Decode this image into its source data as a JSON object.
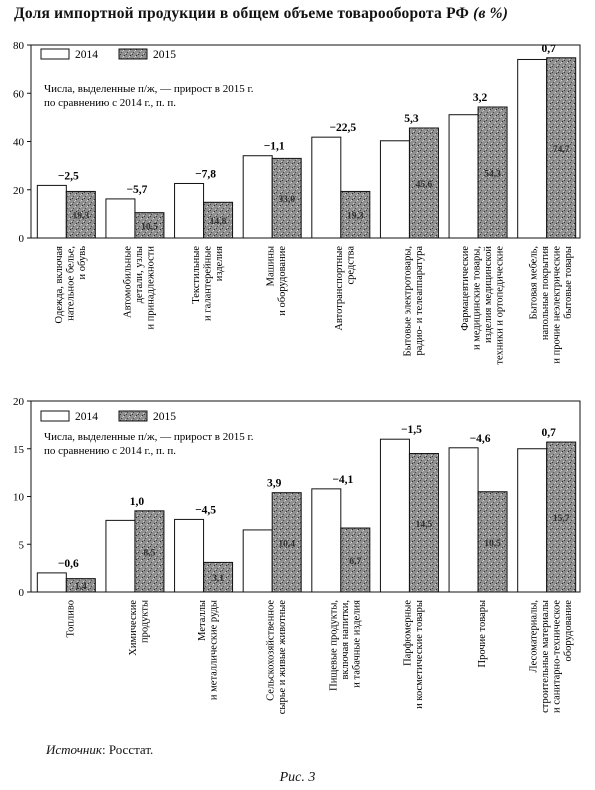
{
  "title": "Доля импортной продукции в общем объеме товарооборота РФ",
  "title_unit": "(в %)",
  "source_label": "Источник",
  "source_text": ": Росстат.",
  "figure_caption": "Рис. 3",
  "colors": {
    "bar2014": "#ffffff",
    "bar2015": "#8f8f8f",
    "stroke": "#111111"
  },
  "chart_data": [
    {
      "type": "bar",
      "ylim": [
        0,
        80
      ],
      "yticks": [
        0,
        20,
        40,
        60,
        80
      ],
      "legend": [
        "2014",
        "2015"
      ],
      "note": [
        "Числа, выделенные п/ж, — прирост в 2015 г.",
        "по сравнению с 2014 г., п. п."
      ],
      "categories": [
        [
          "Одежда, включая",
          "нательное белье,",
          "и обувь"
        ],
        [
          "Автомобильные",
          "детали, узлы",
          "и принадлежности"
        ],
        [
          "Текстильные",
          "и галантерейные",
          "изделия"
        ],
        [
          "Машины",
          "и оборудование"
        ],
        [
          "Автотранспортные",
          "средства"
        ],
        [
          "Бытовые электротовары,",
          "радио- и телеаппаратура"
        ],
        [
          "Фармацевтические",
          "и медицинские товары,",
          "изделия медицинской",
          "техники и ортопедические"
        ],
        [
          "Бытовая мебель,",
          "напольные покрытия",
          "и прочие неэлектрические",
          "бытовые товары"
        ]
      ],
      "series": [
        {
          "name": "2014",
          "values": [
            21.8,
            16.2,
            22.6,
            34.1,
            41.8,
            40.3,
            51.1,
            74.0
          ]
        },
        {
          "name": "2015",
          "values": [
            19.3,
            10.5,
            14.8,
            33.0,
            19.3,
            45.6,
            54.3,
            74.7
          ]
        }
      ],
      "bar_labels_2015": [
        "19,3",
        "10,5",
        "14,8",
        "33,0",
        "19,3",
        "45,6",
        "54,3",
        "74,7"
      ],
      "changes": [
        "−2,5",
        "−5,7",
        "−7,8",
        "−1,1",
        "−22,5",
        "5,3",
        "3,2",
        "0,7"
      ]
    },
    {
      "type": "bar",
      "ylim": [
        0,
        20
      ],
      "yticks": [
        0,
        5,
        10,
        15,
        20
      ],
      "legend": [
        "2014",
        "2015"
      ],
      "note": [
        "Числа, выделенные п/ж, — прирост в 2015 г.",
        "по сравнению с 2014 г., п. п."
      ],
      "categories": [
        [
          "Топливо"
        ],
        [
          "Химические",
          "продукты"
        ],
        [
          "Металлы",
          "и металлические руды"
        ],
        [
          "Сельскохозяйственное",
          "сырье и живые животные"
        ],
        [
          "Пищевые продукты,",
          "включая напитки,",
          "и табачные изделия"
        ],
        [
          "Парфюмерные",
          "и косметические товары"
        ],
        [
          "Прочие товары"
        ],
        [
          "Лесоматериалы,",
          "строительные материалы",
          "и санитарно-техническое",
          "оборудование"
        ]
      ],
      "series": [
        {
          "name": "2014",
          "values": [
            2.0,
            7.5,
            7.6,
            6.5,
            10.8,
            16.0,
            15.1,
            15.0
          ]
        },
        {
          "name": "2015",
          "values": [
            1.4,
            8.5,
            3.1,
            10.4,
            6.7,
            14.5,
            10.5,
            15.7
          ]
        }
      ],
      "bar_labels_2015": [
        "1,4",
        "8,5",
        "3,1",
        "10,4",
        "6,7",
        "14,5",
        "10,5",
        "15,7"
      ],
      "changes": [
        "−0,6",
        "1,0",
        "−4,5",
        "3,9",
        "−4,1",
        "−1,5",
        "−4,6",
        "0,7"
      ]
    }
  ]
}
